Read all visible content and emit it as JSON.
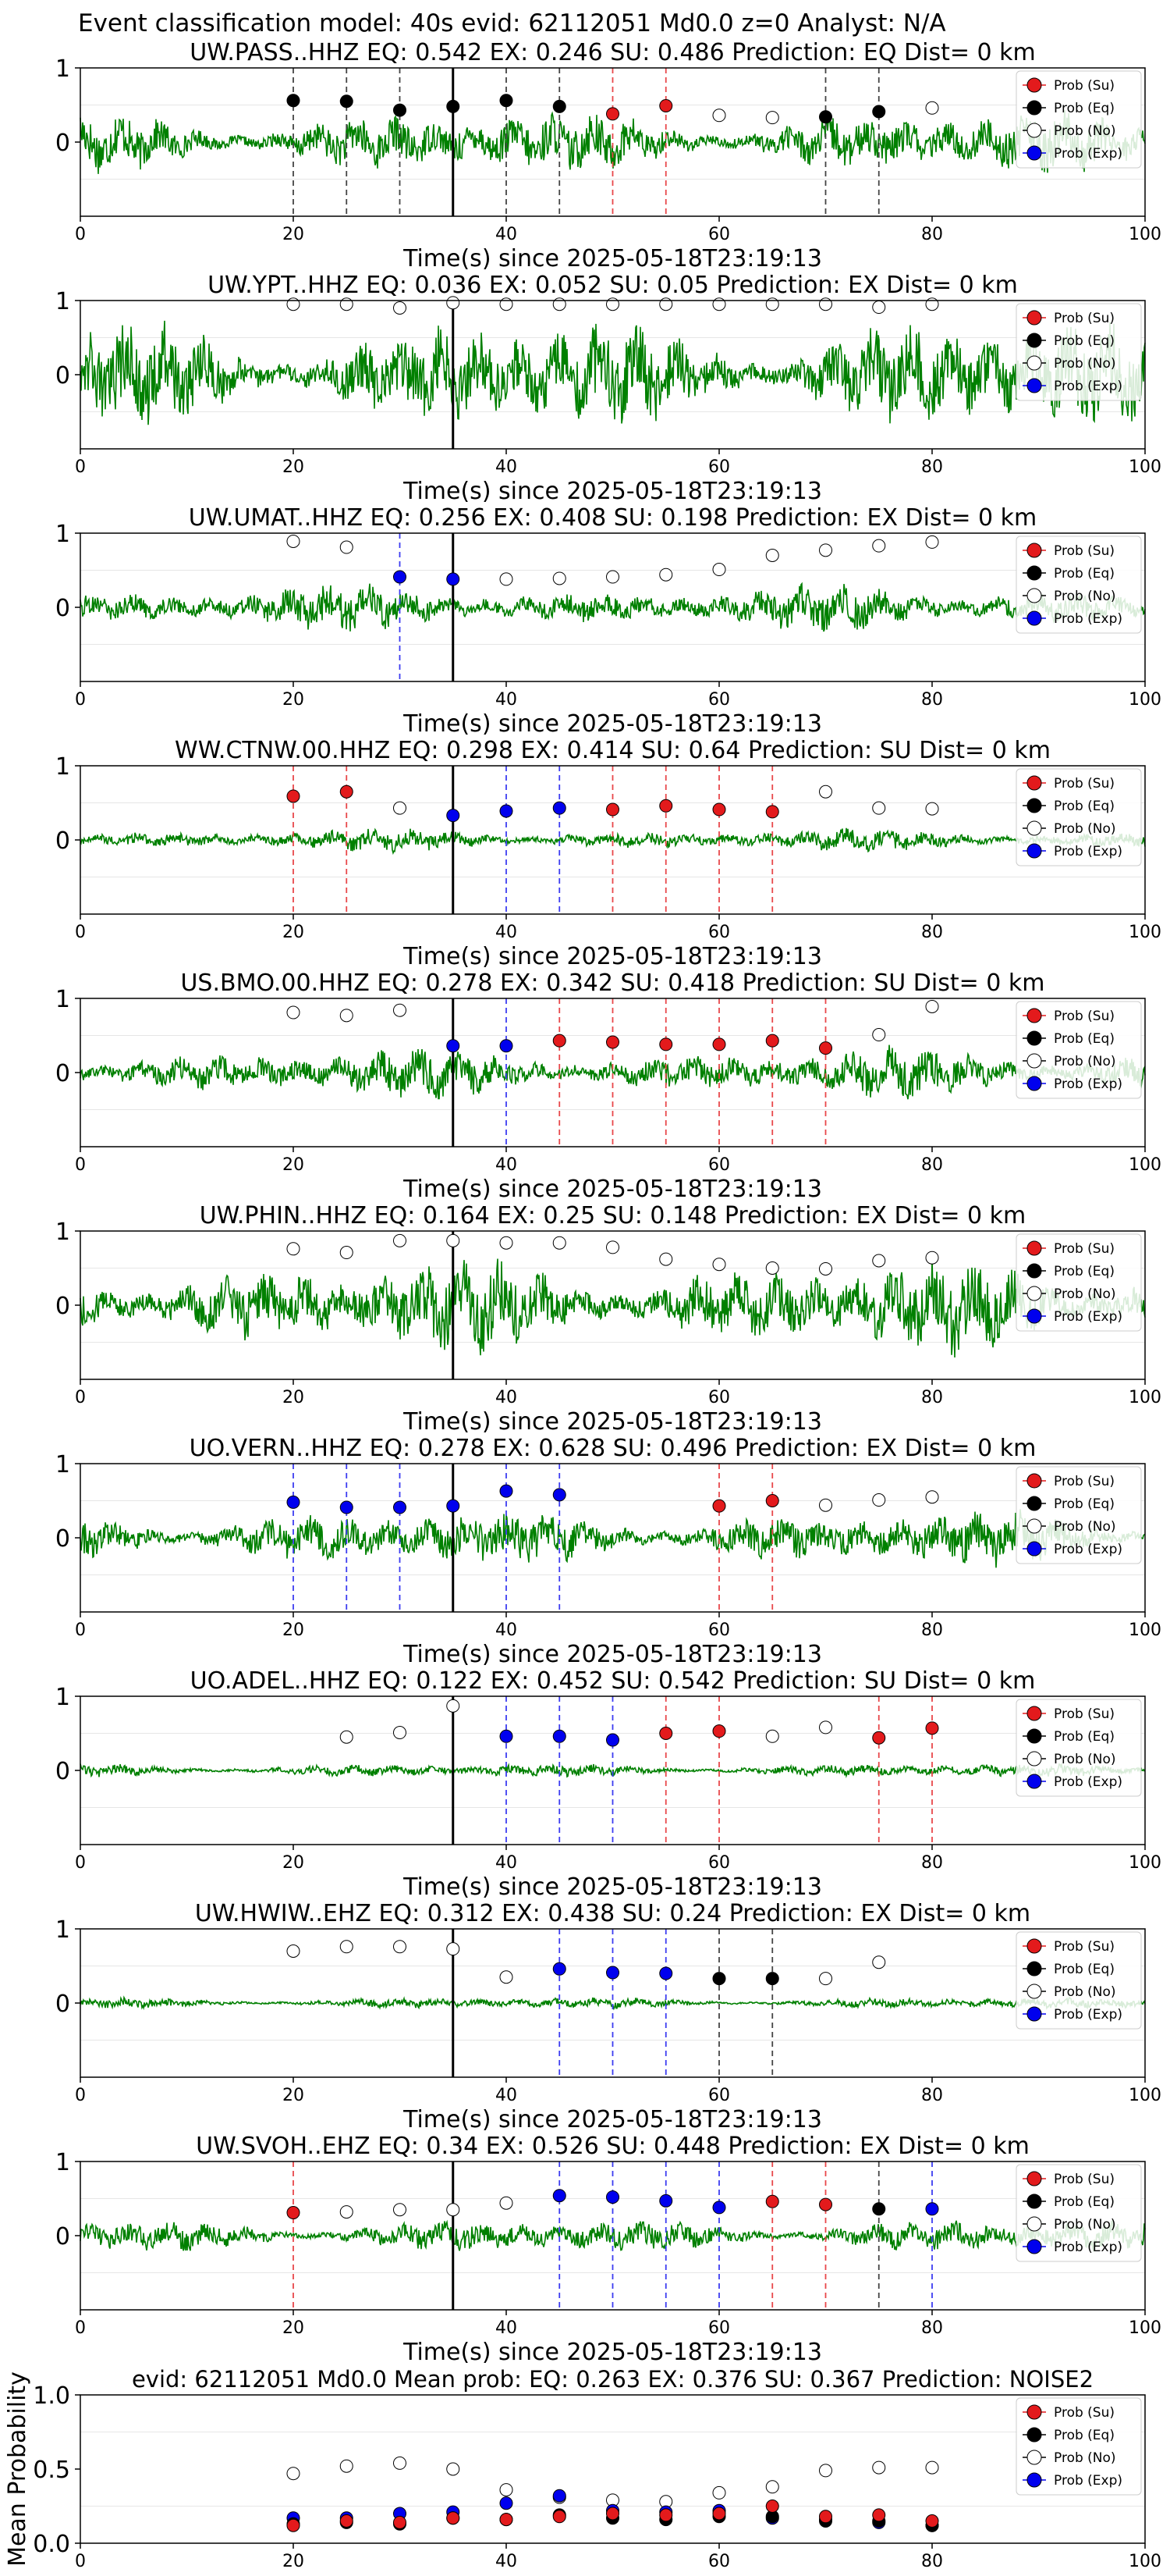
{
  "page_title": "Event classification model: 40s evid: 62112051 Md0.0 z=0 Analyst: N/A",
  "xlabel": "Time(s) since 2025-05-18T23:19:13",
  "legend_labels": [
    "Prob (Su)",
    "Prob (Eq)",
    "Prob (No)",
    "Prob (Exp)"
  ],
  "colors": {
    "waveform": "#008000",
    "su": "#e31a1c",
    "eq": "#000000",
    "no": "#ffffff",
    "exp": "#0000ee",
    "vline_su": "#e8474a",
    "vline_exp": "#3c3cf0",
    "vline_eq": "#444444"
  },
  "chart_data": [
    {
      "type": "line",
      "station": "UW.PASS..HHZ",
      "title": "UW.PASS..HHZ   EQ: 0.542  EX: 0.246  SU: 0.486   Prediction: EQ    Dist= 0 km",
      "xlim": [
        0,
        100
      ],
      "ylim": [
        -1,
        1
      ],
      "xticks": [
        0,
        20,
        40,
        60,
        80,
        100
      ],
      "yticks": [
        1,
        0
      ],
      "arrival": 35,
      "amplitude": 0.28,
      "points": [
        {
          "x": 20,
          "cls": "eq",
          "y": 0.56
        },
        {
          "x": 25,
          "cls": "eq",
          "y": 0.55
        },
        {
          "x": 30,
          "cls": "eq",
          "y": 0.43
        },
        {
          "x": 35,
          "cls": "eq",
          "y": 0.48
        },
        {
          "x": 40,
          "cls": "eq",
          "y": 0.56
        },
        {
          "x": 45,
          "cls": "eq",
          "y": 0.48
        },
        {
          "x": 50,
          "cls": "su",
          "y": 0.38
        },
        {
          "x": 55,
          "cls": "su",
          "y": 0.49
        },
        {
          "x": 60,
          "cls": "no",
          "y": 0.36
        },
        {
          "x": 65,
          "cls": "no",
          "y": 0.33
        },
        {
          "x": 70,
          "cls": "eq",
          "y": 0.34
        },
        {
          "x": 75,
          "cls": "eq",
          "y": 0.41
        },
        {
          "x": 80,
          "cls": "no",
          "y": 0.46
        }
      ]
    },
    {
      "type": "line",
      "station": "UW.YPT..HHZ",
      "title": "UW.YPT..HHZ   EQ: 0.036  EX: 0.052  SU: 0.05   Prediction: EX    Dist= 0 km",
      "xlim": [
        0,
        100
      ],
      "ylim": [
        -1,
        1
      ],
      "xticks": [
        0,
        20,
        40,
        60,
        80,
        100
      ],
      "yticks": [
        1,
        0
      ],
      "arrival": 35,
      "amplitude": 0.5,
      "points": [
        {
          "x": 20,
          "cls": "no",
          "y": 0.95
        },
        {
          "x": 25,
          "cls": "no",
          "y": 0.95
        },
        {
          "x": 30,
          "cls": "no",
          "y": 0.9
        },
        {
          "x": 35,
          "cls": "no",
          "y": 0.97
        },
        {
          "x": 40,
          "cls": "no",
          "y": 0.95
        },
        {
          "x": 45,
          "cls": "no",
          "y": 0.95
        },
        {
          "x": 50,
          "cls": "no",
          "y": 0.95
        },
        {
          "x": 55,
          "cls": "no",
          "y": 0.95
        },
        {
          "x": 60,
          "cls": "no",
          "y": 0.95
        },
        {
          "x": 65,
          "cls": "no",
          "y": 0.95
        },
        {
          "x": 70,
          "cls": "no",
          "y": 0.95
        },
        {
          "x": 75,
          "cls": "no",
          "y": 0.91
        },
        {
          "x": 80,
          "cls": "no",
          "y": 0.95
        }
      ]
    },
    {
      "type": "line",
      "station": "UW.UMAT..HHZ",
      "title": "UW.UMAT..HHZ   EQ: 0.256  EX: 0.408  SU: 0.198   Prediction: EX    Dist= 0 km",
      "xlim": [
        0,
        100
      ],
      "ylim": [
        -1,
        1
      ],
      "xticks": [
        0,
        20,
        40,
        60,
        80,
        100
      ],
      "yticks": [
        1,
        0
      ],
      "arrival": 35,
      "amplitude": 0.2,
      "points": [
        {
          "x": 20,
          "cls": "no",
          "y": 0.89
        },
        {
          "x": 25,
          "cls": "no",
          "y": 0.81
        },
        {
          "x": 30,
          "cls": "exp",
          "y": 0.41
        },
        {
          "x": 35,
          "cls": "exp",
          "y": 0.38
        },
        {
          "x": 40,
          "cls": "no",
          "y": 0.38
        },
        {
          "x": 45,
          "cls": "no",
          "y": 0.39
        },
        {
          "x": 50,
          "cls": "no",
          "y": 0.41
        },
        {
          "x": 55,
          "cls": "no",
          "y": 0.44
        },
        {
          "x": 60,
          "cls": "no",
          "y": 0.51
        },
        {
          "x": 65,
          "cls": "no",
          "y": 0.7
        },
        {
          "x": 70,
          "cls": "no",
          "y": 0.77
        },
        {
          "x": 75,
          "cls": "no",
          "y": 0.83
        },
        {
          "x": 80,
          "cls": "no",
          "y": 0.88
        }
      ]
    },
    {
      "type": "line",
      "station": "WW.CTNW.00.HHZ",
      "title": "WW.CTNW.00.HHZ   EQ: 0.298  EX: 0.414  SU: 0.64   Prediction: SU    Dist= 0 km",
      "xlim": [
        0,
        100
      ],
      "ylim": [
        -1,
        1
      ],
      "xticks": [
        0,
        20,
        40,
        60,
        80,
        100
      ],
      "yticks": [
        1,
        0
      ],
      "arrival": 35,
      "amplitude": 0.1,
      "points": [
        {
          "x": 20,
          "cls": "su",
          "y": 0.59
        },
        {
          "x": 25,
          "cls": "su",
          "y": 0.65
        },
        {
          "x": 30,
          "cls": "no",
          "y": 0.43
        },
        {
          "x": 35,
          "cls": "exp",
          "y": 0.33
        },
        {
          "x": 40,
          "cls": "exp",
          "y": 0.39
        },
        {
          "x": 45,
          "cls": "exp",
          "y": 0.43
        },
        {
          "x": 50,
          "cls": "su",
          "y": 0.41
        },
        {
          "x": 55,
          "cls": "su",
          "y": 0.46
        },
        {
          "x": 60,
          "cls": "su",
          "y": 0.41
        },
        {
          "x": 65,
          "cls": "su",
          "y": 0.38
        },
        {
          "x": 70,
          "cls": "no",
          "y": 0.65
        },
        {
          "x": 75,
          "cls": "no",
          "y": 0.43
        },
        {
          "x": 80,
          "cls": "no",
          "y": 0.42
        }
      ]
    },
    {
      "type": "line",
      "station": "US.BMO.00.HHZ",
      "title": "US.BMO.00.HHZ   EQ: 0.278  EX: 0.342  SU: 0.418   Prediction: SU    Dist= 0 km",
      "xlim": [
        0,
        100
      ],
      "ylim": [
        -1,
        1
      ],
      "xticks": [
        0,
        20,
        40,
        60,
        80,
        100
      ],
      "yticks": [
        1,
        0
      ],
      "arrival": 35,
      "amplitude": 0.22,
      "points": [
        {
          "x": 20,
          "cls": "no",
          "y": 0.81
        },
        {
          "x": 25,
          "cls": "no",
          "y": 0.77
        },
        {
          "x": 30,
          "cls": "no",
          "y": 0.84
        },
        {
          "x": 35,
          "cls": "exp",
          "y": 0.36
        },
        {
          "x": 40,
          "cls": "exp",
          "y": 0.36
        },
        {
          "x": 45,
          "cls": "su",
          "y": 0.43
        },
        {
          "x": 50,
          "cls": "su",
          "y": 0.41
        },
        {
          "x": 55,
          "cls": "su",
          "y": 0.38
        },
        {
          "x": 60,
          "cls": "su",
          "y": 0.38
        },
        {
          "x": 65,
          "cls": "su",
          "y": 0.43
        },
        {
          "x": 70,
          "cls": "su",
          "y": 0.33
        },
        {
          "x": 75,
          "cls": "no",
          "y": 0.51
        },
        {
          "x": 80,
          "cls": "no",
          "y": 0.89
        }
      ]
    },
    {
      "type": "line",
      "station": "UW.PHIN..HHZ",
      "title": "UW.PHIN..HHZ   EQ: 0.164  EX: 0.25  SU: 0.148   Prediction: EX    Dist= 0 km",
      "xlim": [
        0,
        100
      ],
      "ylim": [
        -1,
        1
      ],
      "xticks": [
        0,
        20,
        40,
        60,
        80,
        100
      ],
      "yticks": [
        1,
        0
      ],
      "arrival": 35,
      "amplitude": 0.42,
      "points": [
        {
          "x": 20,
          "cls": "no",
          "y": 0.76
        },
        {
          "x": 25,
          "cls": "no",
          "y": 0.71
        },
        {
          "x": 30,
          "cls": "no",
          "y": 0.87
        },
        {
          "x": 35,
          "cls": "no",
          "y": 0.87
        },
        {
          "x": 40,
          "cls": "no",
          "y": 0.84
        },
        {
          "x": 45,
          "cls": "no",
          "y": 0.84
        },
        {
          "x": 50,
          "cls": "no",
          "y": 0.78
        },
        {
          "x": 55,
          "cls": "no",
          "y": 0.62
        },
        {
          "x": 60,
          "cls": "no",
          "y": 0.55
        },
        {
          "x": 65,
          "cls": "no",
          "y": 0.5
        },
        {
          "x": 70,
          "cls": "no",
          "y": 0.49
        },
        {
          "x": 75,
          "cls": "no",
          "y": 0.6
        },
        {
          "x": 80,
          "cls": "no",
          "y": 0.64
        }
      ]
    },
    {
      "type": "line",
      "station": "UO.VERN..HHZ",
      "title": "UO.VERN..HHZ   EQ: 0.278  EX: 0.628  SU: 0.496   Prediction: EX    Dist= 0 km",
      "xlim": [
        0,
        100
      ],
      "ylim": [
        -1,
        1
      ],
      "xticks": [
        0,
        20,
        40,
        60,
        80,
        100
      ],
      "yticks": [
        1,
        0
      ],
      "arrival": 35,
      "amplitude": 0.25,
      "points": [
        {
          "x": 20,
          "cls": "exp",
          "y": 0.48
        },
        {
          "x": 25,
          "cls": "exp",
          "y": 0.41
        },
        {
          "x": 30,
          "cls": "exp",
          "y": 0.41
        },
        {
          "x": 35,
          "cls": "exp",
          "y": 0.43
        },
        {
          "x": 40,
          "cls": "exp",
          "y": 0.63
        },
        {
          "x": 45,
          "cls": "exp",
          "y": 0.58
        },
        {
          "x": 60,
          "cls": "su",
          "y": 0.43
        },
        {
          "x": 65,
          "cls": "su",
          "y": 0.5
        },
        {
          "x": 70,
          "cls": "no",
          "y": 0.44
        },
        {
          "x": 75,
          "cls": "no",
          "y": 0.51
        },
        {
          "x": 80,
          "cls": "no",
          "y": 0.55
        }
      ]
    },
    {
      "type": "line",
      "station": "UO.ADEL..HHZ",
      "title": "UO.ADEL..HHZ   EQ: 0.122  EX: 0.452  SU: 0.542   Prediction: SU    Dist= 0 km",
      "xlim": [
        0,
        100
      ],
      "ylim": [
        -1,
        1
      ],
      "xticks": [
        0,
        20,
        40,
        60,
        80,
        100
      ],
      "yticks": [
        1,
        0
      ],
      "arrival": 35,
      "amplitude": 0.06,
      "points": [
        {
          "x": 25,
          "cls": "no",
          "y": 0.45
        },
        {
          "x": 30,
          "cls": "no",
          "y": 0.51
        },
        {
          "x": 35,
          "cls": "no",
          "y": 0.87
        },
        {
          "x": 40,
          "cls": "exp",
          "y": 0.46
        },
        {
          "x": 45,
          "cls": "exp",
          "y": 0.46
        },
        {
          "x": 50,
          "cls": "exp",
          "y": 0.41
        },
        {
          "x": 55,
          "cls": "su",
          "y": 0.5
        },
        {
          "x": 60,
          "cls": "su",
          "y": 0.53
        },
        {
          "x": 65,
          "cls": "no",
          "y": 0.46
        },
        {
          "x": 70,
          "cls": "no",
          "y": 0.58
        },
        {
          "x": 75,
          "cls": "su",
          "y": 0.44
        },
        {
          "x": 80,
          "cls": "su",
          "y": 0.57
        }
      ]
    },
    {
      "type": "line",
      "station": "UW.HWIW..EHZ",
      "title": "UW.HWIW..EHZ   EQ: 0.312  EX: 0.438  SU: 0.24   Prediction: EX    Dist= 0 km",
      "xlim": [
        0,
        100
      ],
      "ylim": [
        -1,
        1
      ],
      "xticks": [
        0,
        20,
        40,
        60,
        80,
        100
      ],
      "yticks": [
        1,
        0
      ],
      "arrival": 35,
      "amplitude": 0.05,
      "points": [
        {
          "x": 20,
          "cls": "no",
          "y": 0.7
        },
        {
          "x": 25,
          "cls": "no",
          "y": 0.76
        },
        {
          "x": 30,
          "cls": "no",
          "y": 0.76
        },
        {
          "x": 35,
          "cls": "no",
          "y": 0.73
        },
        {
          "x": 40,
          "cls": "no",
          "y": 0.35
        },
        {
          "x": 45,
          "cls": "exp",
          "y": 0.46
        },
        {
          "x": 50,
          "cls": "exp",
          "y": 0.41
        },
        {
          "x": 55,
          "cls": "exp",
          "y": 0.4
        },
        {
          "x": 60,
          "cls": "eq",
          "y": 0.33
        },
        {
          "x": 65,
          "cls": "eq",
          "y": 0.33
        },
        {
          "x": 70,
          "cls": "no",
          "y": 0.33
        },
        {
          "x": 75,
          "cls": "no",
          "y": 0.55
        }
      ]
    },
    {
      "type": "line",
      "station": "UW.SVOH..EHZ",
      "title": "UW.SVOH..EHZ   EQ: 0.34  EX: 0.526  SU: 0.448   Prediction: EX    Dist= 0 km",
      "xlim": [
        0,
        100
      ],
      "ylim": [
        -1,
        1
      ],
      "xticks": [
        0,
        20,
        40,
        60,
        80,
        100
      ],
      "yticks": [
        1,
        0
      ],
      "arrival": 35,
      "amplitude": 0.15,
      "points": [
        {
          "x": 20,
          "cls": "su",
          "y": 0.31
        },
        {
          "x": 25,
          "cls": "no",
          "y": 0.32
        },
        {
          "x": 30,
          "cls": "no",
          "y": 0.35
        },
        {
          "x": 35,
          "cls": "no",
          "y": 0.35
        },
        {
          "x": 40,
          "cls": "no",
          "y": 0.44
        },
        {
          "x": 45,
          "cls": "exp",
          "y": 0.54
        },
        {
          "x": 50,
          "cls": "exp",
          "y": 0.52
        },
        {
          "x": 55,
          "cls": "exp",
          "y": 0.47
        },
        {
          "x": 60,
          "cls": "exp",
          "y": 0.38
        },
        {
          "x": 65,
          "cls": "su",
          "y": 0.46
        },
        {
          "x": 70,
          "cls": "su",
          "y": 0.42
        },
        {
          "x": 75,
          "cls": "eq",
          "y": 0.36
        },
        {
          "x": 80,
          "cls": "exp",
          "y": 0.36
        }
      ]
    },
    {
      "type": "scatter",
      "title": "evid: 62112051   Md0.0    Mean prob:    EQ: 0.263   EX: 0.376   SU: 0.367    Prediction: NOISE2",
      "ylabel": "Mean Probability",
      "xlim": [
        0,
        100
      ],
      "ylim": [
        0,
        1
      ],
      "xticks": [
        0,
        20,
        40,
        60,
        80,
        100
      ],
      "yticks": [
        1.0,
        0.5,
        0.0
      ],
      "x": [
        20,
        25,
        30,
        35,
        40,
        45,
        50,
        55,
        60,
        65,
        70,
        75,
        80
      ],
      "series": [
        {
          "cls": "no",
          "values": [
            0.47,
            0.52,
            0.54,
            0.5,
            0.36,
            0.31,
            0.29,
            0.28,
            0.34,
            0.38,
            0.49,
            0.51,
            0.51
          ]
        },
        {
          "cls": "exp",
          "values": [
            0.17,
            0.17,
            0.2,
            0.21,
            0.27,
            0.32,
            0.22,
            0.21,
            0.22,
            0.17,
            0.16,
            0.14,
            0.12
          ]
        },
        {
          "cls": "eq",
          "values": [
            0.13,
            0.14,
            0.13,
            0.17,
            0.16,
            0.19,
            0.17,
            0.16,
            0.18,
            0.18,
            0.15,
            0.15,
            0.12
          ]
        },
        {
          "cls": "su",
          "values": [
            0.12,
            0.15,
            0.14,
            0.17,
            0.16,
            0.18,
            0.2,
            0.19,
            0.2,
            0.25,
            0.18,
            0.19,
            0.15
          ]
        }
      ]
    }
  ]
}
